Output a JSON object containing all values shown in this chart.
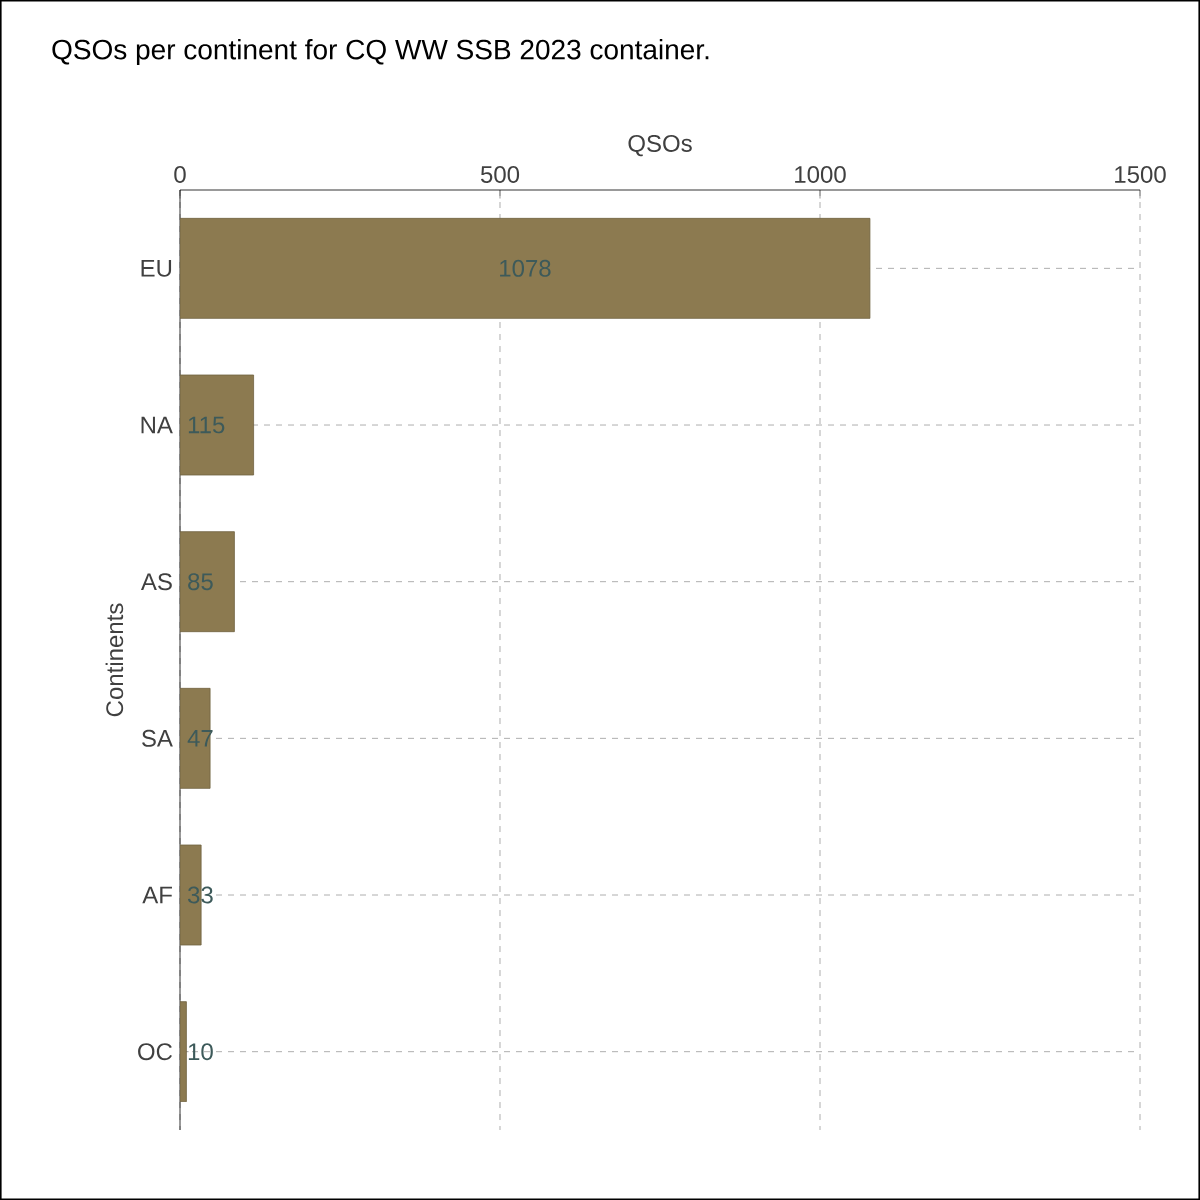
{
  "chart_data": {
    "type": "bar",
    "orientation": "horizontal",
    "title": "QSOs per continent for CQ WW SSB 2023 container.",
    "xlabel": "QSOs",
    "ylabel": "Continents",
    "categories": [
      "EU",
      "NA",
      "AS",
      "SA",
      "AF",
      "OC"
    ],
    "values": [
      1078,
      115,
      85,
      47,
      33,
      10
    ],
    "color": "#8c7a50",
    "xlim": [
      0,
      1500
    ],
    "xticks": [
      0,
      500,
      1000,
      1500
    ],
    "grid": true,
    "data_labels": true
  }
}
